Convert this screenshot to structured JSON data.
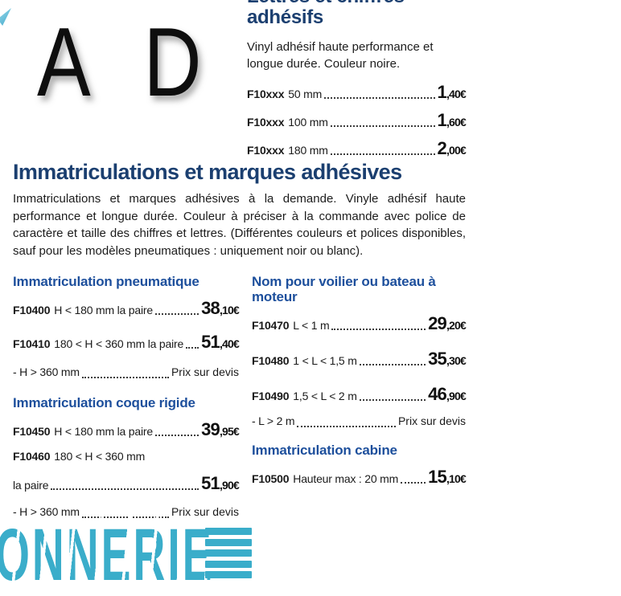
{
  "colors": {
    "navy_title": "#1b3f70",
    "blue_heading": "#1d4f9c",
    "teal_accent": "#3aadca",
    "body_text": "#1a1a1a"
  },
  "header": {
    "big_letters": {
      "first": "A",
      "second": "D"
    },
    "title_line1": "Lettres et chiffres",
    "title_line2": "adhésifs",
    "description": "Vinyl adhésif haute performance et longue durée. Couleur noire.",
    "prices": [
      {
        "code": "F10xxx",
        "size": "50 mm",
        "price_main": "1",
        "price_sub": ",40€"
      },
      {
        "code": "F10xxx",
        "size": "100 mm",
        "price_main": "1",
        "price_sub": ",60€"
      },
      {
        "code": "F10xxx",
        "size": "180 mm",
        "price_main": "2",
        "price_sub": ",00€"
      }
    ]
  },
  "section": {
    "title": "Immatriculations et marques adhésives",
    "description": "Immatriculations et marques adhésives à la demande. Vinyle adhésif haute performance et longue durée. Couleur à préciser à la commande avec police de caractère et taille des chiffres et lettres. (Différentes couleurs et polices disponibles, sauf pour les modèles pneumatiques : uniquement noir ou blanc)."
  },
  "columns": {
    "left": {
      "sections": [
        {
          "heading": "Immatriculation pneumatique",
          "rows": [
            {
              "code": "F10400",
              "desc": "H < 180 mm la paire",
              "price_main": "38",
              "price_sub": ",10€"
            },
            {
              "code": "F10410",
              "desc": "180 < H < 360 mm la paire",
              "price_main": "51",
              "price_sub": ",40€"
            },
            {
              "desc": "- H > 360 mm",
              "price_text": "Prix sur devis"
            }
          ]
        },
        {
          "heading": "Immatriculation coque rigide",
          "rows": [
            {
              "code": "F10450",
              "desc": "H < 180 mm la paire",
              "price_main": "39",
              "price_sub": ",95€"
            },
            {
              "code": "F10460",
              "desc": "180 < H < 360 mm"
            },
            {
              "desc": "la paire",
              "price_main": "51",
              "price_sub": ",90€"
            },
            {
              "desc": "- H > 360 mm",
              "price_text": "Prix sur devis"
            }
          ]
        }
      ]
    },
    "right": {
      "sections": [
        {
          "heading": "Nom pour voilier ou bateau à moteur",
          "rows": [
            {
              "code": "F10470",
              "desc": "L < 1 m",
              "price_main": "29",
              "price_sub": ",20€"
            },
            {
              "code": "F10480",
              "desc": "1 < L < 1,5 m",
              "price_main": "35",
              "price_sub": ",30€"
            },
            {
              "code": "F10490",
              "desc": "1,5 < L < 2 m",
              "price_main": "46",
              "price_sub": ",90€"
            },
            {
              "desc": "- L > 2 m",
              "price_text": "Prix sur devis"
            }
          ]
        },
        {
          "heading": "Immatriculation cabine",
          "rows": [
            {
              "code": "F10500",
              "desc": "Hauteur max : 20 mm",
              "price_main": "15",
              "price_sub": ",10€"
            }
          ]
        }
      ]
    }
  },
  "footer": {
    "brand_fragment": "ONNERIE"
  }
}
